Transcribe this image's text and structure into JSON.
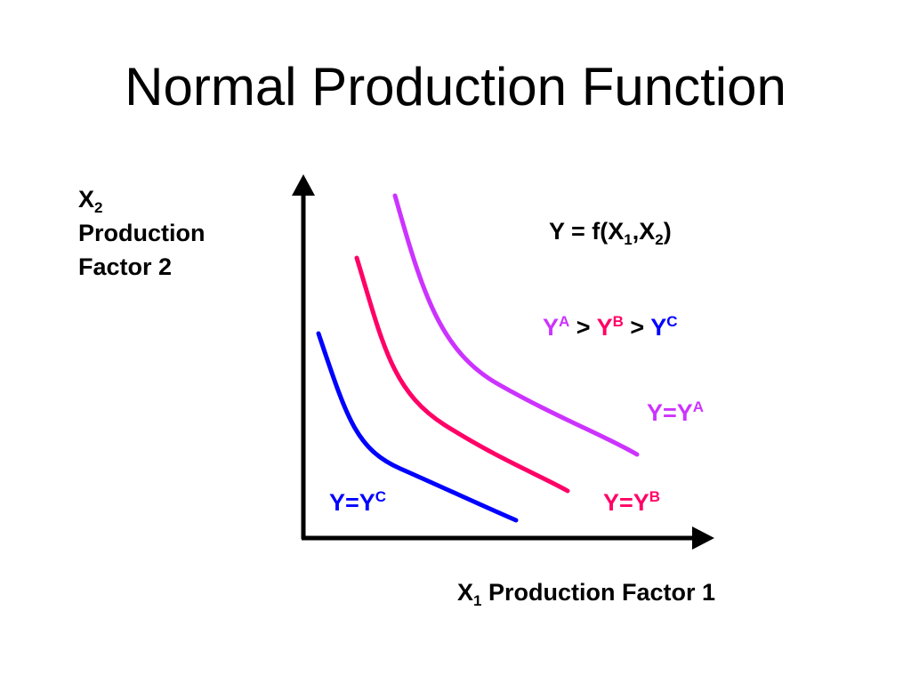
{
  "title": "Normal Production Function",
  "y_axis": {
    "symbol": "X",
    "subscript": "2",
    "line1": "Production",
    "line2": "Factor 2"
  },
  "x_axis": {
    "symbol": "X",
    "subscript": "1",
    "text": "Production Factor 1"
  },
  "formula": {
    "prefix": "Y = f(X",
    "sub1": "1",
    "mid": ",X",
    "sub2": "2",
    "suffix": ")"
  },
  "ordering": {
    "a_base": "Y",
    "a_sup": "A",
    "gt1": " > ",
    "b_base": "Y",
    "b_sup": "B",
    "gt2": " > ",
    "c_base": "Y",
    "c_sup": "C"
  },
  "curves": [
    {
      "id": "A",
      "base": "Y=Y",
      "sup": "A",
      "color": "#cc33ff"
    },
    {
      "id": "B",
      "base": "Y=Y",
      "sup": "B",
      "color": "#ff0066"
    },
    {
      "id": "C",
      "base": "Y=Y",
      "sup": "C",
      "color": "#0000ff"
    }
  ],
  "colors": {
    "axis": "#000000",
    "text": "#000000",
    "background": "#ffffff"
  }
}
